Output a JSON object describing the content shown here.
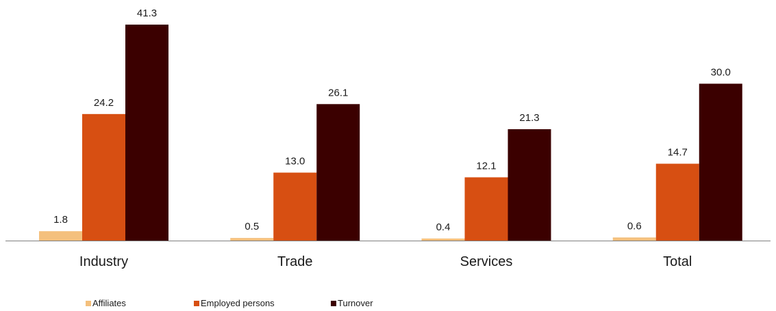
{
  "chart_data": {
    "type": "bar",
    "categories": [
      "Industry",
      "Trade",
      "Services",
      "Total"
    ],
    "series": [
      {
        "name": "Affiliates",
        "values": [
          1.8,
          0.5,
          0.4,
          0.6
        ],
        "color": "#f4c07d"
      },
      {
        "name": "Employed persons",
        "values": [
          24.2,
          13.0,
          12.1,
          14.7
        ],
        "color": "#d74f12"
      },
      {
        "name": "Turnover",
        "values": [
          41.3,
          26.1,
          21.3,
          30.0
        ],
        "color": "#3b0000"
      }
    ],
    "ylim": [
      0,
      45
    ],
    "grid": false,
    "legend": "bottom-left",
    "axis_color": "#7f7f7f"
  }
}
